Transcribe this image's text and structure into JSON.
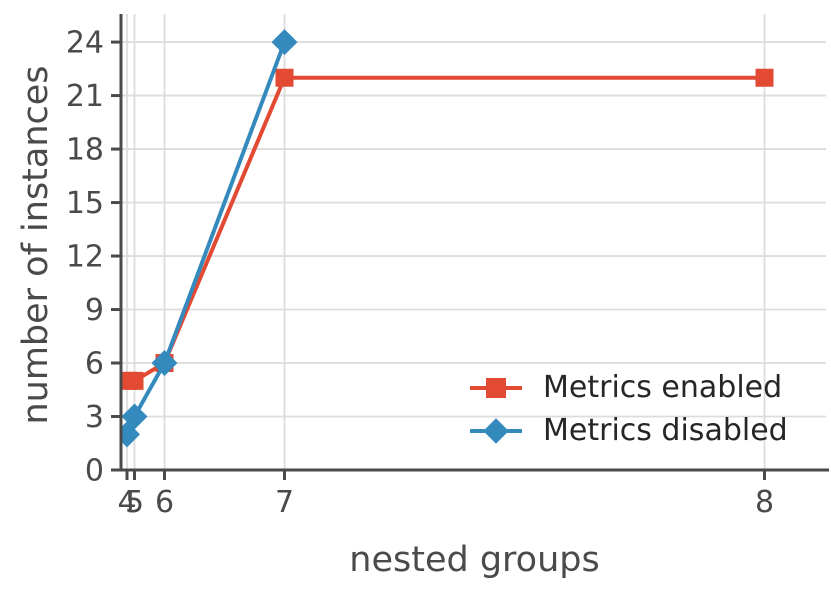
{
  "chart_data": {
    "type": "line",
    "title": "",
    "xlabel": "nested groups",
    "ylabel": "number of instances",
    "x_scale": "linear in 4^x (tick labels show exponent x)",
    "x_ticks": [
      4,
      5,
      6,
      7,
      8
    ],
    "y_ticks": [
      0,
      3,
      6,
      9,
      12,
      15,
      18,
      21,
      24
    ],
    "ylim": [
      0,
      25.6
    ],
    "grid": true,
    "legend_position": "lower right",
    "legend_frame": false,
    "series": [
      {
        "name": "Metrics enabled",
        "color": "#e24a33",
        "marker": "square",
        "x": [
          4,
          5,
          6,
          7,
          8
        ],
        "y": [
          5,
          5,
          6,
          22,
          22
        ]
      },
      {
        "name": "Metrics disabled",
        "color": "#348abd",
        "marker": "diamond",
        "x": [
          4,
          5,
          6,
          7
        ],
        "y": [
          2,
          3,
          6,
          24
        ]
      }
    ],
    "colors": {
      "background": "#ffffff",
      "grid": "#dcdcdc",
      "spine": "#4a4a4a",
      "tick_label": "#4a4a4a",
      "legend_text": "#262626"
    }
  }
}
